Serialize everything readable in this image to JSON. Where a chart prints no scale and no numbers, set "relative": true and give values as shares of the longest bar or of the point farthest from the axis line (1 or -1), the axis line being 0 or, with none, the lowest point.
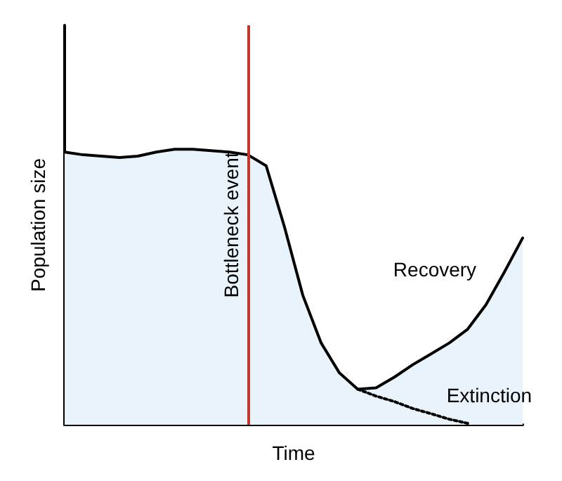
{
  "chart_data": {
    "type": "area",
    "relative": true,
    "xlabel": "Time",
    "ylabel": "Population size",
    "grid": false,
    "legend": false,
    "marker": "none",
    "categories": [
      null,
      null,
      null,
      null,
      null,
      null,
      null,
      null,
      null,
      null,
      null,
      null,
      null,
      null,
      null,
      null,
      null,
      null,
      null,
      null,
      null,
      null,
      null,
      null,
      null,
      null
    ],
    "series": [
      {
        "name": "Recovery",
        "type": "area",
        "color": "#000000",
        "line_style": "solid",
        "values": [
          0.99,
          0.98,
          0.975,
          0.97,
          0.975,
          0.99,
          1,
          1,
          0.995,
          0.99,
          0.98,
          0.94,
          0.718,
          0.47,
          0.297,
          0.188,
          0.129,
          0.134,
          0.173,
          0.218,
          0.257,
          0.297,
          0.347,
          0.436,
          0.554,
          0.678
        ]
      },
      {
        "name": "Extinction",
        "type": "line",
        "color": "#000000",
        "line_style": "dotted",
        "values": [
          null,
          null,
          null,
          null,
          null,
          null,
          null,
          null,
          null,
          null,
          null,
          null,
          null,
          null,
          null,
          null,
          0.129,
          0.104,
          0.084,
          0.059,
          0.04,
          0.02,
          0.005,
          null,
          null,
          null
        ]
      }
    ],
    "annotations": [
      "Bottleneck event"
    ]
  }
}
